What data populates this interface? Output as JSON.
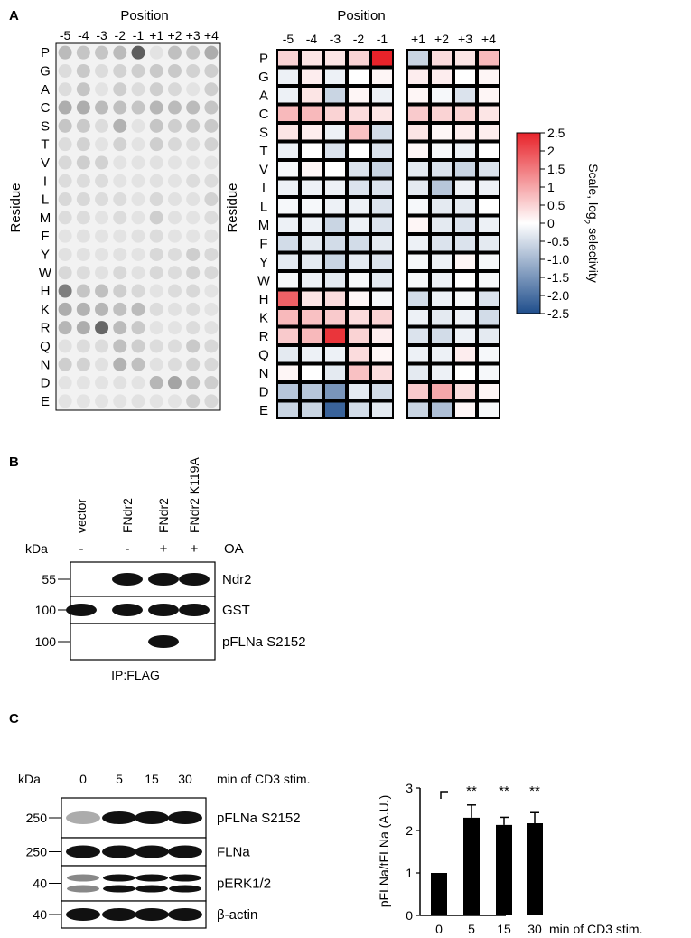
{
  "panels": {
    "A": {
      "letter": "A",
      "array": {
        "title": "Position",
        "positions": [
          "-5",
          "-4",
          "-3",
          "-2",
          "-1",
          "+1",
          "+2",
          "+3",
          "+4"
        ],
        "residues": [
          "P",
          "G",
          "A",
          "C",
          "S",
          "T",
          "V",
          "I",
          "L",
          "M",
          "F",
          "Y",
          "W",
          "H",
          "K",
          "R",
          "Q",
          "N",
          "D",
          "E"
        ],
        "y_label": "Residue"
      },
      "heatmap": {
        "title": "Position",
        "positions_left": [
          "-5",
          "-4",
          "-3",
          "-2",
          "-1"
        ],
        "positions_right": [
          "+1",
          "+2",
          "+3",
          "+4"
        ],
        "residues": [
          "P",
          "G",
          "A",
          "C",
          "S",
          "T",
          "V",
          "I",
          "L",
          "M",
          "F",
          "Y",
          "W",
          "H",
          "K",
          "R",
          "Q",
          "N",
          "D",
          "E"
        ],
        "y_label": "Residue",
        "scale_label": "Scale, log",
        "scale_sub": "2",
        "scale_label_tail": " selectivity",
        "scale_ticks": [
          "2.5",
          "2",
          "1.5",
          "1",
          "0.5",
          "0",
          "-0.5",
          "-1.0",
          "-1.5",
          "-2.0",
          "-2.5"
        ]
      }
    },
    "B": {
      "letter": "B",
      "lanes": [
        "vector",
        "FNdr2",
        "FNdr2",
        "FNdr2 K119A"
      ],
      "oa_label": "OA",
      "oa_states": [
        "-",
        "-",
        "+",
        "+"
      ],
      "kda_label": "kDa",
      "blots": [
        {
          "marker": "55",
          "label": "Ndr2"
        },
        {
          "marker": "100",
          "label": "GST"
        },
        {
          "marker": "100",
          "label": "pFLNa S2152"
        }
      ],
      "ip_label": "IP:FLAG"
    },
    "C": {
      "letter": "C",
      "kda_label": "kDa",
      "times": [
        "0",
        "5",
        "15",
        "30"
      ],
      "stim_label": "min of CD3 stim.",
      "blots": [
        {
          "marker": "250",
          "label": "pFLNa S2152"
        },
        {
          "marker": "250",
          "label": "FLNa"
        },
        {
          "marker": "40",
          "label": "pERK1/2"
        },
        {
          "marker": "40",
          "label": "β-actin"
        }
      ]
    }
  },
  "chart_data": [
    {
      "type": "heatmap",
      "title": "Position",
      "x": [
        "-5",
        "-4",
        "-3",
        "-2",
        "-1",
        "+1",
        "+2",
        "+3",
        "+4"
      ],
      "y": [
        "P",
        "G",
        "A",
        "C",
        "S",
        "T",
        "V",
        "I",
        "L",
        "M",
        "F",
        "Y",
        "W",
        "H",
        "K",
        "R",
        "Q",
        "N",
        "D",
        "E"
      ],
      "ylabel": "Residue",
      "colorbar_label": "Scale, log2 selectivity",
      "zlim": [
        -2.5,
        2.5
      ],
      "colors": {
        "low": "#1f4e8c",
        "mid": "#ffffff",
        "high": "#e8232a"
      },
      "values": [
        [
          0.5,
          0.3,
          0.3,
          0.5,
          2.5,
          -0.6,
          0.4,
          0.3,
          0.8
        ],
        [
          -0.2,
          0.2,
          -0.2,
          0.0,
          0.1,
          0.2,
          0.2,
          0.0,
          0.1
        ],
        [
          -0.2,
          0.3,
          -0.6,
          0.1,
          -0.2,
          0.1,
          -0.1,
          -0.4,
          0.1
        ],
        [
          0.8,
          0.8,
          0.5,
          0.4,
          0.3,
          0.6,
          0.5,
          0.5,
          0.3
        ],
        [
          0.3,
          0.2,
          -0.2,
          0.7,
          -0.5,
          0.3,
          0.1,
          0.2,
          0.2
        ],
        [
          -0.2,
          0.0,
          -0.4,
          0.0,
          -0.4,
          0.1,
          -0.1,
          -0.2,
          0.0
        ],
        [
          -0.1,
          0.1,
          0.0,
          -0.4,
          -0.6,
          -0.3,
          -0.4,
          -0.6,
          -0.4
        ],
        [
          -0.2,
          -0.2,
          -0.2,
          -0.4,
          -0.4,
          -0.3,
          -0.8,
          -0.2,
          -0.2
        ],
        [
          -0.1,
          -0.1,
          -0.2,
          -0.2,
          -0.4,
          -0.1,
          -0.3,
          -0.3,
          0.0
        ],
        [
          -0.2,
          -0.2,
          -0.6,
          -0.2,
          -0.4,
          0.1,
          -0.3,
          -0.4,
          -0.2
        ],
        [
          -0.5,
          -0.3,
          -0.5,
          -0.5,
          -0.3,
          -0.2,
          -0.4,
          -0.4,
          -0.3
        ],
        [
          -0.3,
          -0.3,
          -0.6,
          -0.3,
          -0.4,
          -0.1,
          -0.2,
          0.1,
          -0.1
        ],
        [
          -0.1,
          -0.2,
          -0.3,
          -0.1,
          -0.3,
          -0.1,
          -0.2,
          0.0,
          -0.1
        ],
        [
          1.8,
          0.3,
          0.4,
          0.1,
          -0.1,
          -0.5,
          -0.2,
          -0.1,
          -0.4
        ],
        [
          0.8,
          0.7,
          0.6,
          0.4,
          0.5,
          -0.2,
          -0.3,
          -0.2,
          -0.5
        ],
        [
          0.6,
          0.8,
          2.3,
          0.5,
          0.2,
          -0.4,
          -0.5,
          -0.2,
          -0.3
        ],
        [
          -0.3,
          -0.2,
          -0.2,
          0.4,
          0.1,
          -0.2,
          -0.2,
          0.2,
          -0.1
        ],
        [
          0.1,
          0.0,
          -0.3,
          0.7,
          0.4,
          -0.3,
          -0.2,
          0.0,
          -0.1
        ],
        [
          -0.8,
          -0.8,
          -1.5,
          -0.3,
          -0.5,
          0.6,
          1.0,
          0.4,
          0.1
        ],
        [
          -0.6,
          -0.6,
          -2.2,
          -0.5,
          -0.3,
          -0.6,
          -0.9,
          0.1,
          -0.1
        ]
      ]
    },
    {
      "type": "bar",
      "categories": [
        "0",
        "5",
        "15",
        "30"
      ],
      "values": [
        1.0,
        2.3,
        2.13,
        2.17
      ],
      "errors": [
        0,
        0.3,
        0.18,
        0.25
      ],
      "significance": [
        "",
        "**",
        "**",
        "**"
      ],
      "ylabel": "pFLNa/tFLNa (A.U.)",
      "xlabel": "min of CD3 stim.",
      "yticks": [
        "0",
        "1",
        "2",
        "3"
      ],
      "ylim": [
        0,
        3
      ],
      "bar_color": "#000000"
    }
  ]
}
